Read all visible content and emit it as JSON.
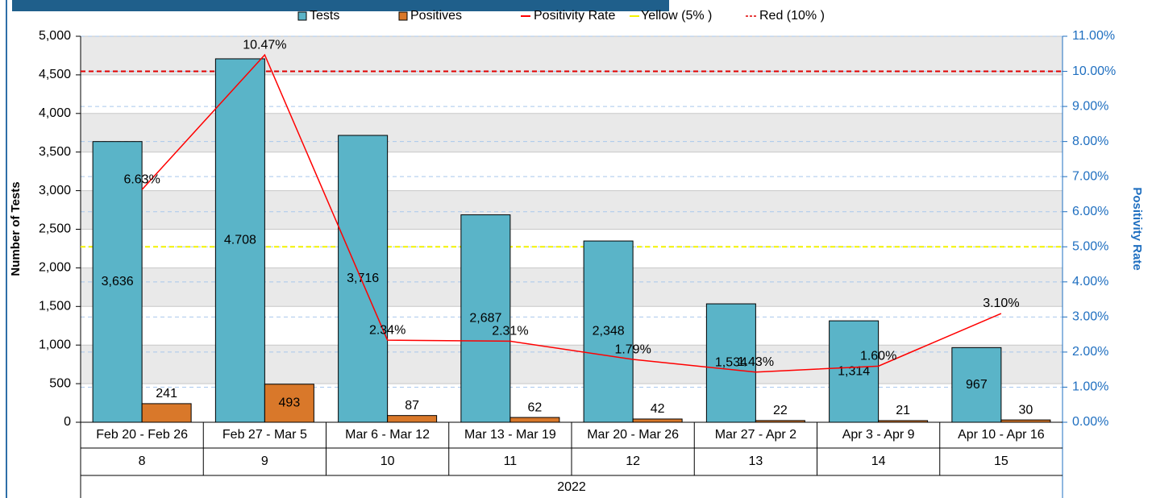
{
  "chart_data": {
    "type": "bar_line",
    "categories": [
      "Feb 20 - Feb 26",
      "Feb 27 - Mar 5",
      "Mar 6 - Mar 12",
      "Mar 13 - Mar 19",
      "Mar 20 - Mar 26",
      "Mar 27 - Apr 2",
      "Apr 3 - Apr 9",
      "Apr 10 - Apr 16"
    ],
    "week_numbers": [
      "8",
      "9",
      "10",
      "11",
      "12",
      "13",
      "14",
      "15"
    ],
    "year": "2022",
    "series": [
      {
        "name": "Tests",
        "color": "#5ab4c8",
        "values": [
          3636,
          4708,
          3716,
          2687,
          2348,
          1534,
          1314,
          967
        ],
        "value_labels": [
          "3,636",
          "4.708",
          "3,716",
          "2,687",
          "2,348",
          "1,534",
          "1,314",
          "967"
        ]
      },
      {
        "name": "Positives",
        "color": "#d9782a",
        "values": [
          241,
          493,
          87,
          62,
          42,
          22,
          21,
          30
        ]
      },
      {
        "name": "Positivity Rate",
        "color": "#ff0000",
        "axis": "y2",
        "values": [
          6.63,
          10.47,
          2.34,
          2.31,
          1.79,
          1.43,
          1.6,
          3.1
        ],
        "value_labels": [
          "6.63%",
          "10.47%",
          "2.34%",
          "2.31%",
          "1.79%",
          "1.43%",
          "1.60%",
          "3.10%"
        ]
      }
    ],
    "reference_lines": [
      {
        "name": "Yellow (5% )",
        "value": 5,
        "color": "#f2f200"
      },
      {
        "name": "Red (10% )",
        "value": 10,
        "color": "#e00000"
      }
    ],
    "ylabel": "Number of Tests",
    "y2label": "Positivity Rate",
    "ylim": [
      0,
      5000
    ],
    "yticks": [
      0,
      {
        "value": 500,
        "label": "500"
      },
      {
        "value": 1000,
        "label": "1,000"
      },
      {
        "value": 1500,
        "label": "1,500"
      },
      {
        "value": 2000,
        "label": "2,000"
      },
      {
        "value": 2500,
        "label": "2,500"
      },
      {
        "value": 3000,
        "label": "3,000"
      },
      {
        "value": 3500,
        "label": "3,500"
      },
      {
        "value": 4000,
        "label": "4,000"
      },
      {
        "value": 4500,
        "label": "4,500"
      },
      {
        "value": 5000,
        "label": "5,000"
      }
    ],
    "y2lim": [
      0,
      11
    ],
    "y2ticks": [
      {
        "value": 0,
        "label": "0.00%"
      },
      {
        "value": 1,
        "label": "1.00%"
      },
      {
        "value": 2,
        "label": "2.00%"
      },
      {
        "value": 3,
        "label": "3.00%"
      },
      {
        "value": 4,
        "label": "4.00%"
      },
      {
        "value": 5,
        "label": "5.00%"
      },
      {
        "value": 6,
        "label": "6.00%"
      },
      {
        "value": 7,
        "label": "7.00%"
      },
      {
        "value": 8,
        "label": "8.00%"
      },
      {
        "value": 9,
        "label": "9.00%"
      },
      {
        "value": 10,
        "label": "10.00%"
      },
      {
        "value": 11,
        "label": "11.00%"
      }
    ],
    "grid": true
  }
}
